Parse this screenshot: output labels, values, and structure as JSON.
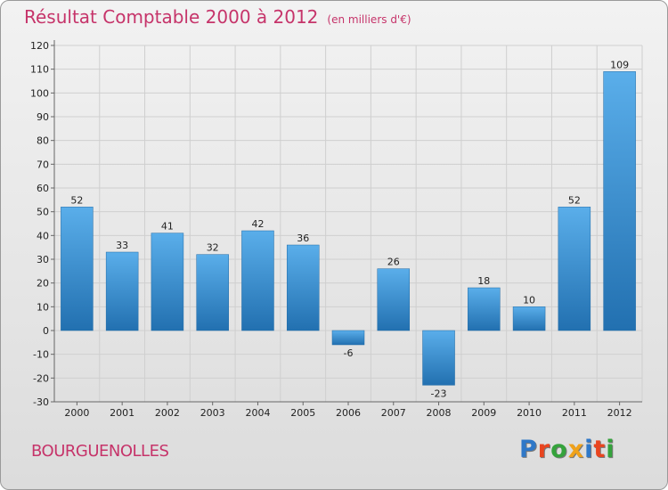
{
  "header": {
    "title": "Résultat Comptable 2000 à 2012",
    "unit": "(en milliers d'€)"
  },
  "footer": {
    "commune": "BOURGUENOLLES",
    "logo_letters": [
      "P",
      "r",
      "o",
      "x",
      "i",
      "t",
      "i"
    ],
    "logo_colors": [
      "#2f78c8",
      "#e9451f",
      "#35a33c",
      "#f0a21a",
      "#2f78c8",
      "#e9451f",
      "#35a33c"
    ]
  },
  "colors": {
    "title": "#c6346a",
    "bar_top": "#5aaeea",
    "bar_bottom": "#2270b0"
  },
  "chart_data": {
    "type": "bar",
    "title": "Résultat Comptable 2000 à 2012",
    "ylabel": "",
    "xlabel": "",
    "categories": [
      "2000",
      "2001",
      "2002",
      "2003",
      "2004",
      "2005",
      "2006",
      "2007",
      "2008",
      "2009",
      "2010",
      "2011",
      "2012"
    ],
    "values": [
      52,
      33,
      41,
      32,
      42,
      36,
      -6,
      26,
      -23,
      18,
      10,
      52,
      109
    ],
    "ylim": [
      -30,
      120
    ],
    "yticks": [
      -30,
      -20,
      -10,
      0,
      10,
      20,
      30,
      40,
      50,
      60,
      70,
      80,
      90,
      100,
      110,
      120
    ],
    "grid": true,
    "data_labels": true
  }
}
